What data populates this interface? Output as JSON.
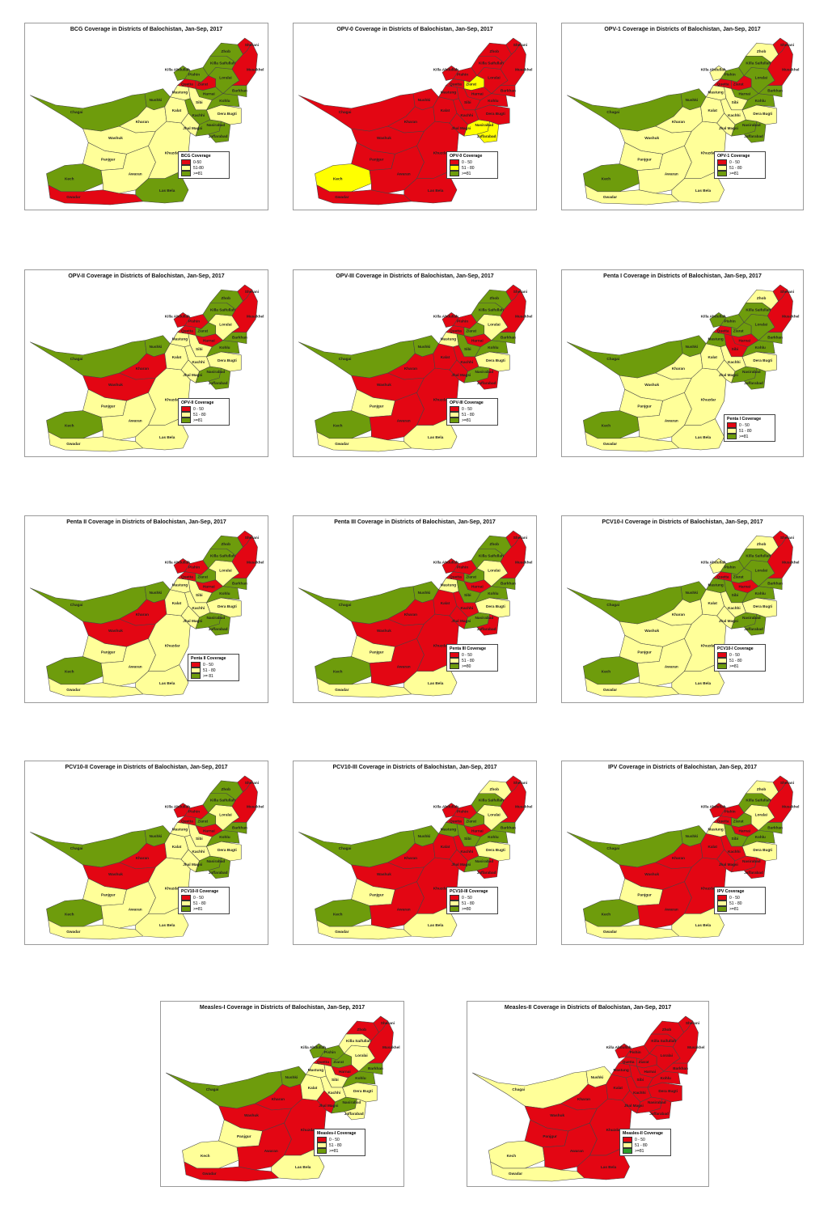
{
  "colors": {
    "red": "#e30613",
    "yellow": "#ffff99",
    "green": "#6e9c0c",
    "bright_yellow": "#ffff00",
    "bright_green": "#2ca02c"
  },
  "district_names": {
    "sherani": "Sherani",
    "zhob": "Zhob",
    "killa_saifullah": "Killa Saifullah",
    "musakhel": "Musakhel",
    "pishin": "Pishin",
    "killa_abdullah": "Killa Abdullah",
    "quetta": "Quetta",
    "ziarat": "Ziarat",
    "loralai": "Loralai",
    "barkhan": "Barkhan",
    "harnai": "Harnai",
    "sibi": "Sibi",
    "kohlu": "Kohlu",
    "mastung": "Mastung",
    "nushki": "Nushki",
    "chagai": "Chagai",
    "kalat": "Kalat",
    "kachhi": "Kachhi",
    "dera_bugti": "Dera Bugti",
    "nasirabad": "Nasirabad",
    "jhal_magsi": "Jhal Magsi",
    "jaffarabad": "Jaffarabad",
    "kharan": "Kharan",
    "washuk": "Washuk",
    "khuzdar": "Khuzdar",
    "panjgur": "Panjgur",
    "awaran": "Awaran",
    "kech": "Kech",
    "las_bela": "Las Bela",
    "gwadar": "Gwadar"
  },
  "maps": [
    {
      "title": "BCG Coverage in Districts of Balochistan, Jan-Sep, 2017",
      "legend": {
        "title": "BCG Coverage",
        "items": [
          "0-50",
          "51-80",
          ">=81"
        ]
      },
      "fills": {
        "sherani": "R",
        "zhob": "G",
        "killa_saifullah": "G",
        "musakhel": "R",
        "pishin": "G",
        "killa_abdullah": "G",
        "quetta": "R",
        "ziarat": "R",
        "loralai": "G",
        "barkhan": "G",
        "harnai": "G",
        "sibi": "Y",
        "kohlu": "G",
        "mastung": "Y",
        "nushki": "G",
        "chagai": "G",
        "kalat": "Y",
        "kachhi": "G",
        "dera_bugti": "Y",
        "nasirabad": "G",
        "jhal_magsi": "Y",
        "jaffarabad": "G",
        "kharan": "Y",
        "washuk": "Y",
        "khuzdar": "Y",
        "panjgur": "Y",
        "awaran": "Y",
        "kech": "G",
        "las_bela": "G",
        "gwadar": "R"
      }
    },
    {
      "title": "OPV-0 Coverage in Districts of Balochistan, Jan-Sep, 2017",
      "legend": {
        "title": "OPV-0 Coverage",
        "items": [
          "0 - 50",
          "51 - 80",
          ">=81"
        ]
      },
      "fills": {
        "sherani": "R",
        "zhob": "R",
        "killa_saifullah": "R",
        "musakhel": "R",
        "pishin": "R",
        "killa_abdullah": "R",
        "quetta": "R",
        "ziarat": "Y",
        "loralai": "R",
        "barkhan": "R",
        "harnai": "R",
        "sibi": "R",
        "kohlu": "R",
        "mastung": "R",
        "nushki": "R",
        "chagai": "R",
        "kalat": "R",
        "kachhi": "R",
        "dera_bugti": "R",
        "nasirabad": "Y",
        "jhal_magsi": "R",
        "jaffarabad": "Y",
        "kharan": "R",
        "washuk": "R",
        "khuzdar": "R",
        "panjgur": "R",
        "awaran": "R",
        "kech": "Y",
        "las_bela": "R",
        "gwadar": "R"
      }
    },
    {
      "title": "OPV-1 Coverage in Districts of Balochistan, Jan-Sep, 2017",
      "legend": {
        "title": "OPV-1 Coverage",
        "items": [
          "0 - 50",
          "51 - 80",
          ">=81"
        ]
      },
      "fills": {
        "sherani": "R",
        "zhob": "Y",
        "killa_saifullah": "G",
        "musakhel": "R",
        "pishin": "G",
        "killa_abdullah": "Y",
        "quetta": "R",
        "ziarat": "R",
        "loralai": "G",
        "barkhan": "G",
        "harnai": "G",
        "sibi": "Y",
        "kohlu": "G",
        "mastung": "Y",
        "nushki": "G",
        "chagai": "G",
        "kalat": "Y",
        "kachhi": "Y",
        "dera_bugti": "Y",
        "nasirabad": "G",
        "jhal_magsi": "Y",
        "jaffarabad": "G",
        "kharan": "Y",
        "washuk": "Y",
        "khuzdar": "Y",
        "panjgur": "Y",
        "awaran": "Y",
        "kech": "G",
        "las_bela": "Y",
        "gwadar": "Y"
      }
    },
    {
      "title": "OPV-II Coverage in Districts of Balochistan, Jan-Sep, 2017",
      "legend": {
        "title": "OPV-II Coverage",
        "items": [
          "0 - 50",
          "51 - 80",
          ">=81"
        ]
      },
      "fills": {
        "sherani": "R",
        "zhob": "G",
        "killa_saifullah": "G",
        "musakhel": "R",
        "pishin": "R",
        "killa_abdullah": "R",
        "quetta": "R",
        "ziarat": "G",
        "loralai": "Y",
        "barkhan": "G",
        "harnai": "R",
        "sibi": "Y",
        "kohlu": "G",
        "mastung": "Y",
        "nushki": "G",
        "chagai": "G",
        "kalat": "Y",
        "kachhi": "Y",
        "dera_bugti": "Y",
        "nasirabad": "G",
        "jhal_magsi": "Y",
        "jaffarabad": "G",
        "kharan": "R",
        "washuk": "R",
        "khuzdar": "Y",
        "panjgur": "Y",
        "awaran": "Y",
        "kech": "G",
        "las_bela": "Y",
        "gwadar": "Y"
      }
    },
    {
      "title": "OPV-III Coverage in Districts of Balochistan, Jan-Sep, 2017",
      "legend": {
        "title": "OPV-III Coverage",
        "items": [
          "0 - 50",
          "51 - 80",
          ">=81"
        ]
      },
      "fills": {
        "sherani": "R",
        "zhob": "G",
        "killa_saifullah": "G",
        "musakhel": "R",
        "pishin": "R",
        "killa_abdullah": "R",
        "quetta": "R",
        "ziarat": "G",
        "loralai": "Y",
        "barkhan": "G",
        "harnai": "R",
        "sibi": "G",
        "kohlu": "G",
        "mastung": "Y",
        "nushki": "G",
        "chagai": "G",
        "kalat": "R",
        "kachhi": "R",
        "dera_bugti": "Y",
        "nasirabad": "G",
        "jhal_magsi": "R",
        "jaffarabad": "R",
        "kharan": "R",
        "washuk": "R",
        "khuzdar": "R",
        "panjgur": "Y",
        "awaran": "R",
        "kech": "G",
        "las_bela": "Y",
        "gwadar": "Y"
      }
    },
    {
      "title": "Penta I Coverage in Districts of Balochistan, Jan-Sep, 2017",
      "legend": {
        "title": "Penta I Coverage",
        "items": [
          "0 - 50",
          "51 - 80",
          ">=81"
        ]
      },
      "fills": {
        "sherani": "R",
        "zhob": "Y",
        "killa_saifullah": "G",
        "musakhel": "R",
        "pishin": "G",
        "killa_abdullah": "G",
        "quetta": "R",
        "ziarat": "G",
        "loralai": "G",
        "barkhan": "G",
        "harnai": "R",
        "sibi": "R",
        "kohlu": "G",
        "mastung": "G",
        "nushki": "G",
        "chagai": "G",
        "kalat": "Y",
        "kachhi": "Y",
        "dera_bugti": "Y",
        "nasirabad": "G",
        "jhal_magsi": "Y",
        "jaffarabad": "G",
        "kharan": "Y",
        "washuk": "Y",
        "khuzdar": "Y",
        "panjgur": "Y",
        "awaran": "Y",
        "kech": "G",
        "las_bela": "Y",
        "gwadar": "Y"
      }
    },
    {
      "title": "Penta II Coverage in Districts of Balochistan, Jan-Sep, 2017",
      "legend": {
        "title": "Penta II Coverage",
        "items": [
          "0 - 50",
          "51 - 80",
          ">= 81"
        ]
      },
      "fills": {
        "sherani": "R",
        "zhob": "G",
        "killa_saifullah": "G",
        "musakhel": "R",
        "pishin": "R",
        "killa_abdullah": "R",
        "quetta": "R",
        "ziarat": "G",
        "loralai": "Y",
        "barkhan": "G",
        "harnai": "R",
        "sibi": "Y",
        "kohlu": "G",
        "mastung": "Y",
        "nushki": "G",
        "chagai": "G",
        "kalat": "Y",
        "kachhi": "Y",
        "dera_bugti": "Y",
        "nasirabad": "G",
        "jhal_magsi": "Y",
        "jaffarabad": "G",
        "kharan": "R",
        "washuk": "R",
        "khuzdar": "Y",
        "panjgur": "Y",
        "awaran": "Y",
        "kech": "G",
        "las_bela": "Y",
        "gwadar": "Y"
      }
    },
    {
      "title": "Penta III Coverage in Districts of Balochistan, Jan-Sep, 2017",
      "legend": {
        "title": "Penta III Coverage",
        "items": [
          "0 - 50",
          "51 - 80",
          ">=80"
        ]
      },
      "fills": {
        "sherani": "R",
        "zhob": "G",
        "killa_saifullah": "G",
        "musakhel": "R",
        "pishin": "R",
        "killa_abdullah": "R",
        "quetta": "R",
        "ziarat": "G",
        "loralai": "Y",
        "barkhan": "G",
        "harnai": "R",
        "sibi": "G",
        "kohlu": "G",
        "mastung": "Y",
        "nushki": "G",
        "chagai": "G",
        "kalat": "R",
        "kachhi": "R",
        "dera_bugti": "Y",
        "nasirabad": "G",
        "jhal_magsi": "R",
        "jaffarabad": "R",
        "kharan": "R",
        "washuk": "R",
        "khuzdar": "R",
        "panjgur": "Y",
        "awaran": "R",
        "kech": "G",
        "las_bela": "Y",
        "gwadar": "Y"
      }
    },
    {
      "title": "PCV10-I Coverage in Districts of Balochistan, Jan-Sep, 2017",
      "legend": {
        "title": "PCV10-I Coverage",
        "items": [
          "0 - 50",
          "51 - 80",
          ">=81"
        ]
      },
      "fills": {
        "sherani": "R",
        "zhob": "Y",
        "killa_saifullah": "G",
        "musakhel": "R",
        "pishin": "G",
        "killa_abdullah": "Y",
        "quetta": "R",
        "ziarat": "G",
        "loralai": "G",
        "barkhan": "G",
        "harnai": "R",
        "sibi": "G",
        "kohlu": "G",
        "mastung": "G",
        "nushki": "G",
        "chagai": "G",
        "kalat": "Y",
        "kachhi": "Y",
        "dera_bugti": "Y",
        "nasirabad": "G",
        "jhal_magsi": "Y",
        "jaffarabad": "G",
        "kharan": "Y",
        "washuk": "Y",
        "khuzdar": "Y",
        "panjgur": "Y",
        "awaran": "Y",
        "kech": "G",
        "las_bela": "Y",
        "gwadar": "Y"
      }
    },
    {
      "title": "PCV10-II Coverage in Districts of Balochistan, Jan-Sep, 2017",
      "legend": {
        "title": "PCV10-II Coverage",
        "items": [
          "0 - 50",
          "51 - 80",
          ">=81"
        ]
      },
      "fills": {
        "sherani": "R",
        "zhob": "G",
        "killa_saifullah": "G",
        "musakhel": "R",
        "pishin": "R",
        "killa_abdullah": "R",
        "quetta": "R",
        "ziarat": "G",
        "loralai": "Y",
        "barkhan": "G",
        "harnai": "R",
        "sibi": "Y",
        "kohlu": "G",
        "mastung": "Y",
        "nushki": "G",
        "chagai": "G",
        "kalat": "Y",
        "kachhi": "Y",
        "dera_bugti": "Y",
        "nasirabad": "G",
        "jhal_magsi": "Y",
        "jaffarabad": "G",
        "kharan": "R",
        "washuk": "R",
        "khuzdar": "Y",
        "panjgur": "Y",
        "awaran": "Y",
        "kech": "G",
        "las_bela": "Y",
        "gwadar": "Y"
      }
    },
    {
      "title": "PCV10-III Coverage in Districts of Balochistan, Jan-Sep, 2017",
      "legend": {
        "title": "PCV10-III Coverage",
        "items": [
          "0 - 50",
          "51 - 80",
          ">=80"
        ]
      },
      "fills": {
        "sherani": "R",
        "zhob": "Y",
        "killa_saifullah": "G",
        "musakhel": "R",
        "pishin": "R",
        "killa_abdullah": "R",
        "quetta": "R",
        "ziarat": "G",
        "loralai": "Y",
        "barkhan": "G",
        "harnai": "R",
        "sibi": "G",
        "kohlu": "G",
        "mastung": "G",
        "nushki": "G",
        "chagai": "G",
        "kalat": "R",
        "kachhi": "R",
        "dera_bugti": "Y",
        "nasirabad": "G",
        "jhal_magsi": "R",
        "jaffarabad": "R",
        "kharan": "R",
        "washuk": "R",
        "khuzdar": "R",
        "panjgur": "Y",
        "awaran": "R",
        "kech": "G",
        "las_bela": "Y",
        "gwadar": "Y"
      }
    },
    {
      "title": "IPV Coverage in Districts of Balochistan, Jan-Sep, 2017",
      "legend": {
        "title": "IPV Coverage",
        "items": [
          "0 - 50",
          "51 - 80",
          ">=81"
        ]
      },
      "fills": {
        "sherani": "R",
        "zhob": "Y",
        "killa_saifullah": "G",
        "musakhel": "R",
        "pishin": "R",
        "killa_abdullah": "R",
        "quetta": "R",
        "ziarat": "G",
        "loralai": "Y",
        "barkhan": "G",
        "harnai": "R",
        "sibi": "G",
        "kohlu": "G",
        "mastung": "Y",
        "nushki": "G",
        "chagai": "G",
        "kalat": "R",
        "kachhi": "R",
        "dera_bugti": "Y",
        "nasirabad": "R",
        "jhal_magsi": "R",
        "jaffarabad": "R",
        "kharan": "R",
        "washuk": "R",
        "khuzdar": "R",
        "panjgur": "Y",
        "awaran": "R",
        "kech": "G",
        "las_bela": "Y",
        "gwadar": "Y"
      }
    },
    {
      "title": "Measles-I Coverage in Districts of Balochistan, Jan-Sep, 2017",
      "legend": {
        "title": "Measles-I Coverage",
        "items": [
          "0 - 50",
          "51 - 80",
          ">=81"
        ]
      },
      "fills": {
        "sherani": "R",
        "zhob": "R",
        "killa_saifullah": "Y",
        "musakhel": "R",
        "pishin": "G",
        "killa_abdullah": "G",
        "quetta": "R",
        "ziarat": "G",
        "loralai": "Y",
        "barkhan": "G",
        "harnai": "R",
        "sibi": "Y",
        "kohlu": "G",
        "mastung": "Y",
        "nushki": "G",
        "chagai": "G",
        "kalat": "Y",
        "kachhi": "Y",
        "dera_bugti": "Y",
        "nasirabad": "G",
        "jhal_magsi": "R",
        "jaffarabad": "Y",
        "kharan": "R",
        "washuk": "R",
        "khuzdar": "R",
        "panjgur": "Y",
        "awaran": "R",
        "kech": "Y",
        "las_bela": "Y",
        "gwadar": "R"
      }
    },
    {
      "title": "Measles-II Coverage in Districts of Balochistan, Jan-Sep, 2017",
      "legend": {
        "title": "Measles-II Coverage",
        "items": [
          "0 - 50",
          "51 - 80",
          ">=81"
        ]
      },
      "fills": {
        "sherani": "R",
        "zhob": "R",
        "killa_saifullah": "R",
        "musakhel": "R",
        "pishin": "R",
        "killa_abdullah": "R",
        "quetta": "R",
        "ziarat": "R",
        "loralai": "R",
        "barkhan": "R",
        "harnai": "R",
        "sibi": "R",
        "kohlu": "R",
        "mastung": "R",
        "nushki": "Y",
        "chagai": "Y",
        "kalat": "R",
        "kachhi": "R",
        "dera_bugti": "R",
        "nasirabad": "R",
        "jhal_magsi": "R",
        "jaffarabad": "R",
        "kharan": "R",
        "washuk": "R",
        "khuzdar": "R",
        "panjgur": "R",
        "awaran": "R",
        "kech": "Y",
        "las_bela": "R",
        "gwadar": "Y"
      }
    }
  ]
}
